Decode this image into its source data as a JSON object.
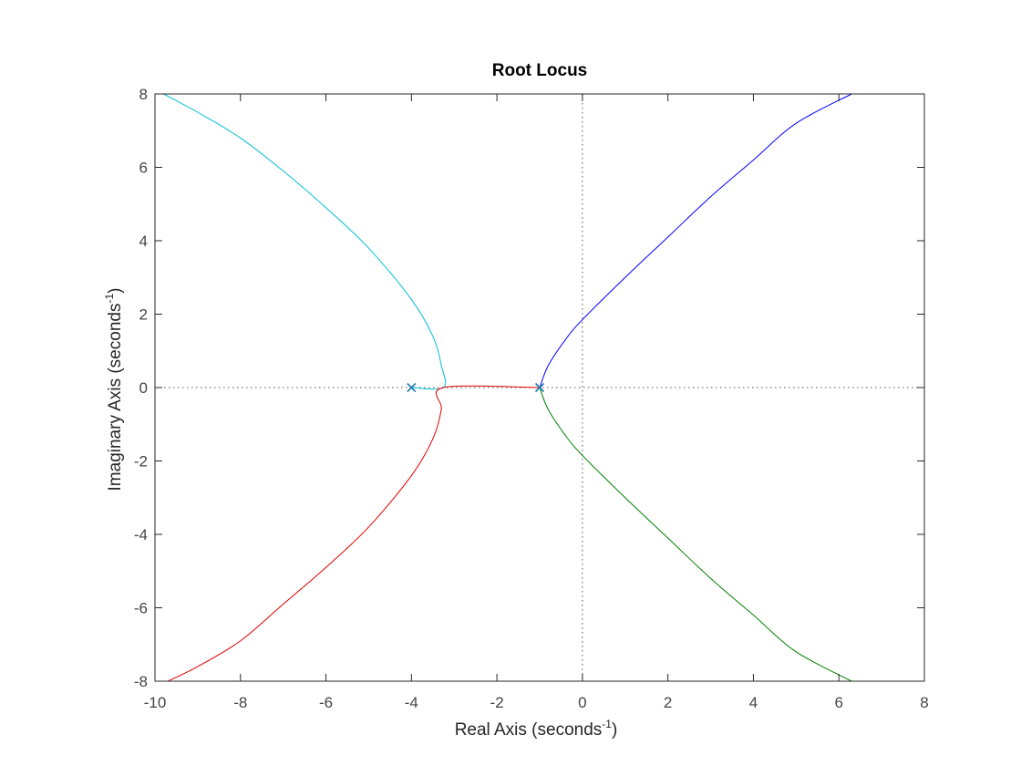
{
  "chart_data": {
    "type": "line",
    "title": "Root Locus",
    "xlabel": {
      "text": "Real Axis (seconds",
      "sup": "-1",
      "suffix": ")"
    },
    "ylabel": {
      "text": "Imaginary Axis (seconds",
      "sup": "-1",
      "suffix": ")"
    },
    "xlim": [
      -10,
      8
    ],
    "ylim": [
      -8,
      8
    ],
    "xticks": [
      -10,
      -8,
      -6,
      -4,
      -2,
      0,
      2,
      4,
      6,
      8
    ],
    "yticks": [
      -8,
      -6,
      -4,
      -2,
      0,
      2,
      4,
      6,
      8
    ],
    "xtick_labels": [
      "-10",
      "-8",
      "-6",
      "-4",
      "-2",
      "0",
      "2",
      "4",
      "6",
      "8"
    ],
    "ytick_labels": [
      "-8",
      "-6",
      "-4",
      "-2",
      "0",
      "2",
      "4",
      "6",
      "8"
    ],
    "grid": false,
    "reference_lines": {
      "x": 0,
      "y": 0,
      "style": "dotted"
    },
    "poles": [
      {
        "x": -4,
        "y": 0
      },
      {
        "x": -1,
        "y": 0
      }
    ],
    "pole_color": "#1f77b4",
    "series": [
      {
        "color": "#0000ff",
        "points": [
          [
            -1.0,
            0.0
          ],
          [
            -0.8,
            0.6
          ],
          [
            -0.4,
            1.3
          ],
          [
            0.0,
            1.85
          ],
          [
            1.0,
            3.0
          ],
          [
            2.0,
            4.1
          ],
          [
            3.0,
            5.2
          ],
          [
            4.0,
            6.2
          ],
          [
            5.0,
            7.2
          ],
          [
            6.3,
            8.0
          ]
        ]
      },
      {
        "color": "#008000",
        "points": [
          [
            -1.0,
            0.0
          ],
          [
            -0.8,
            -0.6
          ],
          [
            -0.4,
            -1.3
          ],
          [
            0.0,
            -1.85
          ],
          [
            1.0,
            -3.0
          ],
          [
            2.0,
            -4.1
          ],
          [
            3.0,
            -5.2
          ],
          [
            4.0,
            -6.2
          ],
          [
            5.0,
            -7.2
          ],
          [
            6.3,
            -8.0
          ]
        ]
      },
      {
        "color": "#00bfd8",
        "points": [
          [
            -4.0,
            0.0
          ],
          [
            -3.25,
            0.0
          ],
          [
            -3.3,
            0.6
          ],
          [
            -3.5,
            1.4
          ],
          [
            -4.0,
            2.4
          ],
          [
            -5.0,
            3.8
          ],
          [
            -6.0,
            4.9
          ],
          [
            -7.0,
            5.9
          ],
          [
            -8.0,
            6.8
          ],
          [
            -9.0,
            7.5
          ],
          [
            -9.8,
            8.0
          ]
        ]
      },
      {
        "color": "#e00000",
        "points": [
          [
            -1.0,
            0.0
          ],
          [
            -3.25,
            0.0
          ],
          [
            -3.3,
            -0.6
          ],
          [
            -3.5,
            -1.4
          ],
          [
            -4.0,
            -2.4
          ],
          [
            -5.0,
            -3.8
          ],
          [
            -6.0,
            -4.9
          ],
          [
            -7.0,
            -5.9
          ],
          [
            -8.0,
            -6.9
          ],
          [
            -9.0,
            -7.6
          ],
          [
            -9.7,
            -8.0
          ]
        ]
      }
    ]
  }
}
